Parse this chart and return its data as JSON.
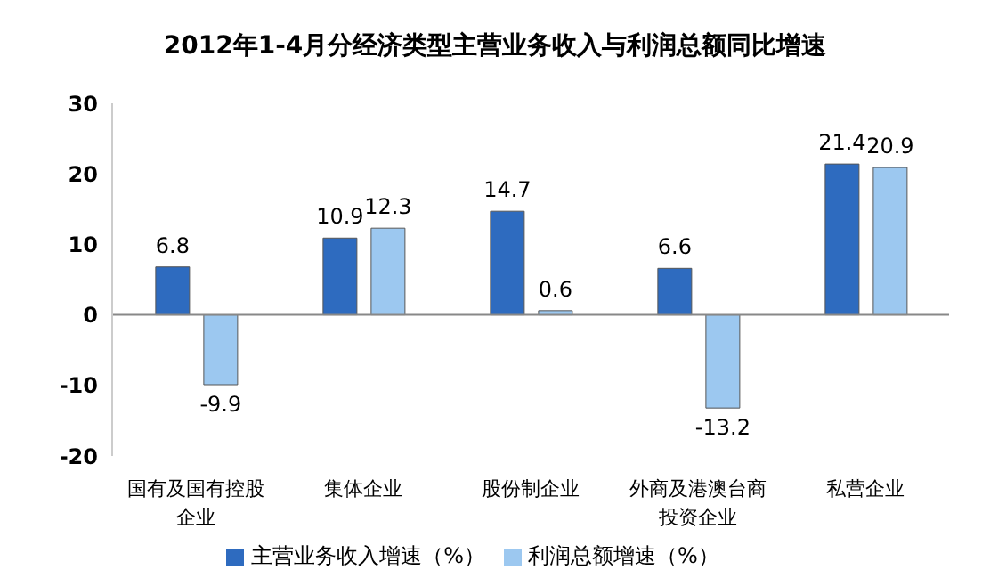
{
  "chart_data": {
    "type": "bar",
    "title": "2012年1-4月分经济类型主营业务收入与利润总额同比增速",
    "categories": [
      "国有及国有控股企业",
      "集体企业",
      "股份制企业",
      "外商及港澳台商投资企业",
      "私营企业"
    ],
    "series": [
      {
        "name": "主营业务收入增速（%）",
        "color": "#2e6bbf",
        "values": [
          6.8,
          10.9,
          14.7,
          6.6,
          21.4
        ]
      },
      {
        "name": "利润总额增速（%）",
        "color": "#9cc8f0",
        "values": [
          -9.9,
          12.3,
          0.6,
          -13.2,
          20.9
        ]
      }
    ],
    "ylim": [
      -20,
      30
    ],
    "yticks": [
      -20,
      -10,
      0,
      10,
      20,
      30
    ],
    "data_labels": true,
    "grid": false,
    "ref_lines": [
      {
        "axis": "y",
        "value": 0,
        "color": "#888888"
      }
    ],
    "legend": "bottom"
  }
}
